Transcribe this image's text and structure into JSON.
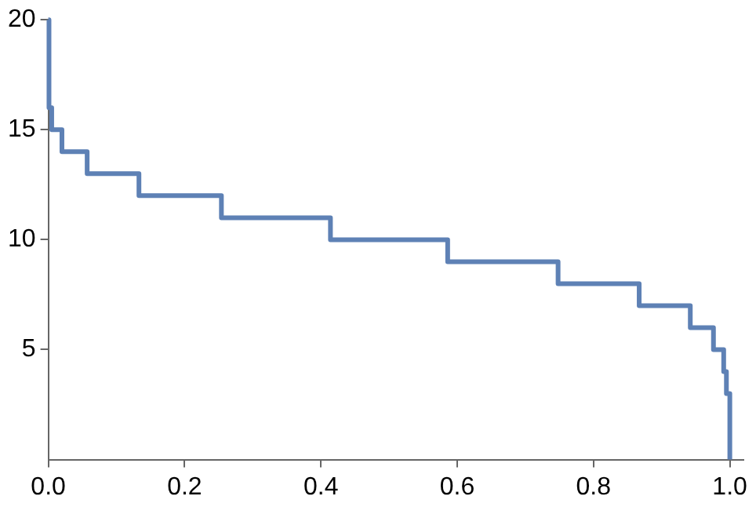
{
  "chart_data": {
    "type": "step",
    "x": [
      0,
      0.001,
      0.005,
      0.02,
      0.057,
      0.133,
      0.254,
      0.414,
      0.586,
      0.748,
      0.867,
      0.942,
      0.976,
      0.991,
      0.995,
      1.0
    ],
    "series": [
      {
        "color": "#5e81b5",
        "values": [
          20,
          16,
          15,
          14,
          13,
          12,
          11,
          10,
          9,
          8,
          7,
          6,
          5,
          4,
          3,
          0
        ]
      }
    ],
    "xlim": [
      0,
      1.02
    ],
    "ylim": [
      0,
      20
    ],
    "xticks": [
      {
        "value": 0,
        "label": "0.0"
      },
      {
        "value": 0.2,
        "label": "0.2"
      },
      {
        "value": 0.4,
        "label": "0.4"
      },
      {
        "value": 0.6,
        "label": "0.6"
      },
      {
        "value": 0.8,
        "label": "0.8"
      },
      {
        "value": 1,
        "label": "1.0"
      }
    ],
    "yticks": [
      5,
      10,
      15,
      20
    ],
    "grid": false,
    "legend": false
  }
}
